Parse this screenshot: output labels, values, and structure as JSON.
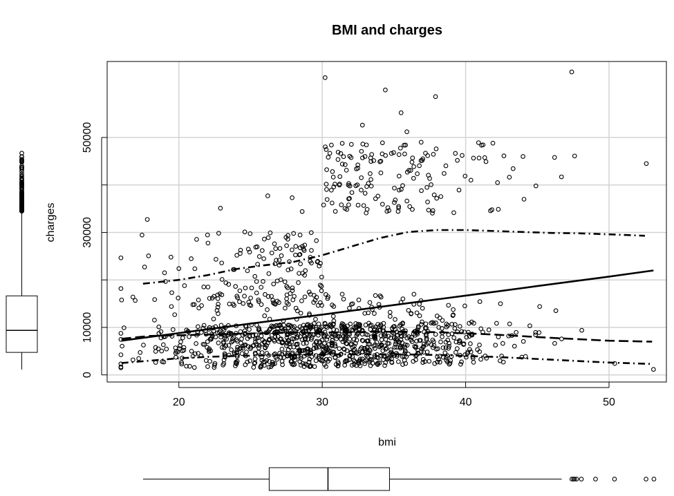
{
  "chart_data": {
    "type": "scatter",
    "title": "BMI and charges",
    "xlabel": "bmi",
    "ylabel": "charges",
    "xlim": [
      15,
      54
    ],
    "ylim": [
      -1500,
      66000
    ],
    "grid": true,
    "x_ticks": [
      20,
      30,
      40,
      50
    ],
    "y_ticks": [
      0,
      10000,
      20000,
      30000,
      40000,
      50000
    ],
    "y_tick_labels": [
      "0",
      "10000",
      "",
      "30000",
      "",
      "50000"
    ],
    "point_count": 1338,
    "sample_points": [
      [
        15.96,
        1694
      ],
      [
        16.8,
        3167
      ],
      [
        17.3,
        4720
      ],
      [
        17.8,
        32734
      ],
      [
        18.3,
        11534
      ],
      [
        19.0,
        21500
      ],
      [
        20.0,
        22400
      ],
      [
        21.2,
        6600
      ],
      [
        22.9,
        35100
      ],
      [
        23.2,
        7800
      ],
      [
        24.6,
        30100
      ],
      [
        26.2,
        37700
      ],
      [
        27.0,
        23100
      ],
      [
        27.9,
        37300
      ],
      [
        28.6,
        34400
      ],
      [
        30.2,
        62600
      ],
      [
        30.8,
        39600
      ],
      [
        31.4,
        44400
      ],
      [
        32.8,
        52600
      ],
      [
        34.4,
        60000
      ],
      [
        35.5,
        55200
      ],
      [
        35.9,
        51200
      ],
      [
        36.9,
        49000
      ],
      [
        37.9,
        58600
      ],
      [
        38.2,
        12000
      ],
      [
        40.9,
        48900
      ],
      [
        41.9,
        48800
      ],
      [
        44.0,
        46000
      ],
      [
        44.9,
        39800
      ],
      [
        46.2,
        45800
      ],
      [
        47.4,
        63800
      ],
      [
        47.6,
        46100
      ],
      [
        48.1,
        9400
      ],
      [
        50.4,
        2400
      ],
      [
        52.6,
        44500
      ],
      [
        53.1,
        1163
      ]
    ],
    "series": [
      {
        "style": "solid",
        "x": [
          16,
          20,
          25,
          30,
          35,
          40,
          45,
          50,
          53.1
        ],
        "y": [
          7200,
          8800,
          10800,
          12700,
          14700,
          16700,
          18700,
          20700,
          22000
        ]
      },
      {
        "style": "dashed",
        "x": [
          16,
          18,
          22,
          26,
          30,
          34,
          38,
          42,
          46,
          50,
          53
        ],
        "y": [
          7600,
          8200,
          8500,
          8800,
          8900,
          9100,
          9000,
          8500,
          7800,
          7200,
          7000
        ]
      },
      {
        "style": "dotdash",
        "x": [
          17.5,
          20,
          22,
          24,
          26,
          28,
          30,
          32,
          34,
          36,
          38,
          40,
          42,
          44,
          46,
          48,
          50,
          52.5
        ],
        "y": [
          19200,
          20000,
          21000,
          22300,
          23100,
          23800,
          25200,
          27000,
          28800,
          30100,
          30500,
          30500,
          30300,
          30100,
          29900,
          29800,
          29600,
          29300
        ]
      },
      {
        "style": "dotdash",
        "x": [
          16,
          18,
          20,
          22,
          24,
          26,
          28,
          30,
          32,
          34,
          36,
          38,
          40,
          42,
          44,
          46,
          48,
          50,
          53
        ],
        "y": [
          2500,
          3000,
          3500,
          3800,
          4000,
          4100,
          4200,
          4300,
          4350,
          4350,
          4300,
          4200,
          4000,
          3800,
          3500,
          3200,
          2900,
          2600,
          2300
        ]
      }
    ],
    "charges_boxplot": {
      "min": 1122,
      "q1": 4740,
      "median": 9382,
      "q3": 16640,
      "upper_whisker": 34500
    },
    "bmi_boxplot": {
      "min": 15.96,
      "q1": 26.3,
      "median": 30.4,
      "q3": 34.69,
      "upper_whisker": 46.7,
      "outliers": [
        47.41,
        47.52,
        47.6,
        47.74,
        48.07,
        49.06,
        50.38,
        52.58,
        53.13
      ]
    }
  }
}
